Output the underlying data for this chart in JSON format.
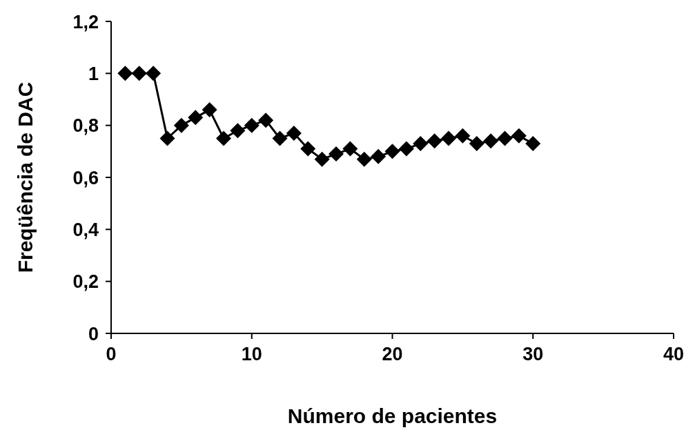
{
  "chart_data": {
    "type": "line",
    "xlabel": "Número de pacientes",
    "ylabel": "Freqüência de DAC",
    "x": [
      1,
      2,
      3,
      4,
      5,
      6,
      7,
      8,
      9,
      10,
      11,
      12,
      13,
      14,
      15,
      16,
      17,
      18,
      19,
      20,
      21,
      22,
      23,
      24,
      25,
      26,
      27,
      28,
      29,
      30
    ],
    "series": [
      {
        "color": "#000000",
        "values": [
          1,
          1,
          1,
          0.75,
          0.8,
          0.83,
          0.86,
          0.75,
          0.78,
          0.8,
          0.82,
          0.75,
          0.77,
          0.71,
          0.67,
          0.69,
          0.71,
          0.67,
          0.68,
          0.7,
          0.71,
          0.73,
          0.74,
          0.75,
          0.76,
          0.73,
          0.74,
          0.75,
          0.76,
          0.73
        ]
      }
    ],
    "xlim": [
      0,
      40
    ],
    "xticks": [
      0,
      10,
      20,
      30,
      40
    ],
    "ylim": [
      0,
      1.2
    ],
    "yticks": [
      0,
      {
        "value": 0.2,
        "label": "0,2"
      },
      {
        "value": 0.4,
        "label": "0,4"
      },
      {
        "value": 0.6,
        "label": "0,6"
      },
      {
        "value": 0.8,
        "label": "0,8"
      },
      1,
      {
        "value": 1.2,
        "label": "1,2"
      }
    ],
    "grid": false,
    "legend": false,
    "marker": "diamond",
    "line_style": "solid"
  }
}
